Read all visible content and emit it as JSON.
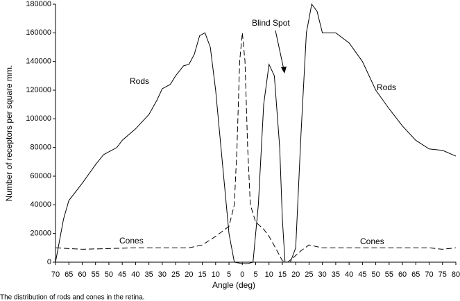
{
  "chart_data": {
    "type": "line",
    "xlabel": "Angle (deg)",
    "ylabel": "Number of receptors per square mm.",
    "caption": "The  distribution of rods and cones in the retina.",
    "xlim": [
      -70,
      80
    ],
    "ylim": [
      0,
      180000
    ],
    "xticks": [
      {
        "value": -70,
        "label": "70"
      },
      {
        "value": -65,
        "label": "65"
      },
      {
        "value": -60,
        "label": "60"
      },
      {
        "value": -55,
        "label": "55"
      },
      {
        "value": -50,
        "label": "50"
      },
      {
        "value": -45,
        "label": "45"
      },
      {
        "value": -40,
        "label": "40"
      },
      {
        "value": -35,
        "label": "35"
      },
      {
        "value": -30,
        "label": "30"
      },
      {
        "value": -25,
        "label": "25"
      },
      {
        "value": -20,
        "label": "20"
      },
      {
        "value": -15,
        "label": "15"
      },
      {
        "value": -10,
        "label": "10"
      },
      {
        "value": -5,
        "label": "5"
      },
      0,
      5,
      10,
      15,
      20,
      25,
      30,
      35,
      40,
      45,
      50,
      55,
      60,
      65,
      70,
      75,
      80
    ],
    "yticks": [
      0,
      20000,
      40000,
      60000,
      80000,
      100000,
      120000,
      140000,
      160000,
      180000
    ],
    "annotations": [
      "Rods",
      "Blind Spot",
      "Rods",
      "Cones",
      "Cones"
    ],
    "series": [
      {
        "name": "Rods",
        "color": "#000000",
        "dash": false,
        "x": [
          -70,
          -67,
          -65,
          -60,
          -55,
          -52,
          -47,
          -45,
          -40,
          -35,
          -32,
          -30,
          -27,
          -25,
          -22,
          -20,
          -18,
          -16,
          -14,
          -12,
          -10,
          -8,
          -5,
          -3,
          0,
          2,
          4,
          6,
          8,
          10,
          12,
          14,
          15,
          16,
          18,
          20,
          22,
          24,
          26,
          28,
          30,
          35,
          40,
          45,
          50,
          55,
          60,
          65,
          70,
          75,
          80
        ],
        "values": [
          0,
          30000,
          43000,
          55000,
          68000,
          75000,
          80000,
          85000,
          93000,
          103000,
          113000,
          121000,
          124000,
          130000,
          137000,
          138000,
          145000,
          158000,
          160000,
          150000,
          120000,
          80000,
          20000,
          0,
          -1000,
          -1000,
          0,
          40000,
          110000,
          138000,
          130000,
          80000,
          30000,
          0,
          0,
          10000,
          90000,
          160000,
          180000,
          175000,
          160000,
          160000,
          153000,
          140000,
          120000,
          107000,
          95000,
          85000,
          79000,
          78000,
          74000
        ]
      },
      {
        "name": "Cones",
        "color": "#000000",
        "dash": true,
        "x": [
          -70,
          -60,
          -40,
          -20,
          -15,
          -10,
          -5,
          -3,
          -2,
          -1,
          0,
          1,
          2,
          3,
          5,
          8,
          10,
          13,
          15,
          17,
          19,
          22,
          25,
          30,
          50,
          70,
          75,
          80
        ],
        "values": [
          10000,
          9000,
          10000,
          10000,
          12000,
          18000,
          25000,
          40000,
          80000,
          140000,
          160000,
          140000,
          80000,
          40000,
          28000,
          23000,
          18000,
          8000,
          1000,
          0,
          3000,
          8000,
          12000,
          10000,
          10000,
          10000,
          9000,
          10000
        ]
      }
    ]
  }
}
